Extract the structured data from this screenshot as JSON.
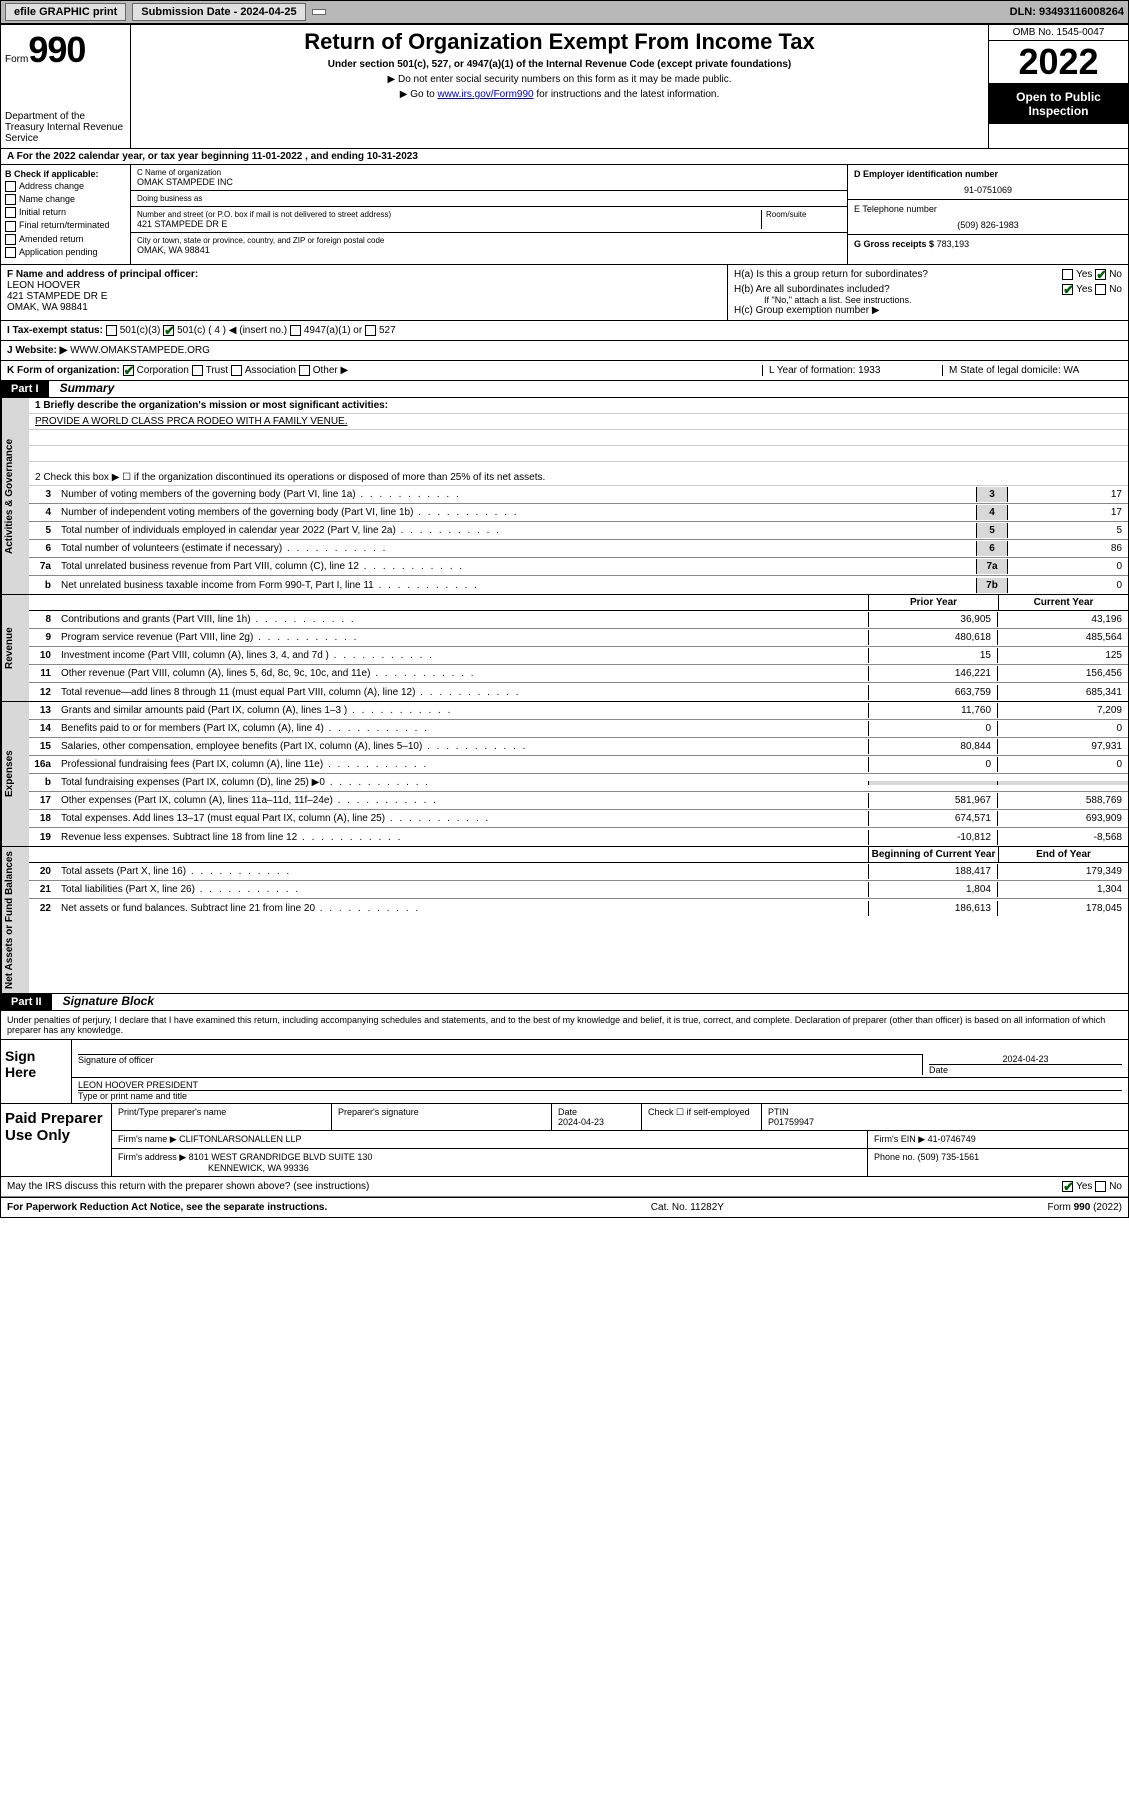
{
  "top": {
    "efile": "efile GRAPHIC print",
    "subdate_label": "Submission Date - 2024-04-25",
    "dln": "DLN: 93493116008264"
  },
  "header": {
    "form_label": "Form",
    "form_num": "990",
    "dept": "Department of the Treasury Internal Revenue Service",
    "title": "Return of Organization Exempt From Income Tax",
    "sub1": "Under section 501(c), 527, or 4947(a)(1) of the Internal Revenue Code (except private foundations)",
    "sub2": "▶ Do not enter social security numbers on this form as it may be made public.",
    "sub3_pre": "▶ Go to ",
    "sub3_link": "www.irs.gov/Form990",
    "sub3_post": " for instructions and the latest information.",
    "omb": "OMB No. 1545-0047",
    "year": "2022",
    "open": "Open to Public Inspection"
  },
  "rowA": "A  For the 2022 calendar year, or tax year beginning 11-01-2022   , and ending 10-31-2023",
  "colB": {
    "label": "B Check if applicable:",
    "items": [
      "Address change",
      "Name change",
      "Initial return",
      "Final return/terminated",
      "Amended return",
      "Application pending"
    ]
  },
  "colC": {
    "name_label": "C Name of organization",
    "name": "OMAK STAMPEDE INC",
    "dba_label": "Doing business as",
    "dba": "",
    "addr_label": "Number and street (or P.O. box if mail is not delivered to street address)",
    "room_label": "Room/suite",
    "addr": "421 STAMPEDE DR E",
    "city_label": "City or town, state or province, country, and ZIP or foreign postal code",
    "city": "OMAK, WA  98841"
  },
  "colD": {
    "ein_label": "D Employer identification number",
    "ein": "91-0751069",
    "phone_label": "E Telephone number",
    "phone": "(509) 826-1983",
    "gross_label": "G Gross receipts $",
    "gross": "783,193"
  },
  "rowF": {
    "label": "F Name and address of principal officer:",
    "name": "LEON HOOVER",
    "addr1": "421 STAMPEDE DR E",
    "addr2": "OMAK, WA  98841"
  },
  "rowH": {
    "ha": "H(a)  Is this a group return for subordinates?",
    "hb": "H(b)  Are all subordinates included?",
    "hb_note": "If \"No,\" attach a list. See instructions.",
    "hc": "H(c)  Group exemption number ▶"
  },
  "rowI": {
    "label": "I   Tax-exempt status:",
    "opts": [
      "501(c)(3)",
      "501(c) ( 4 ) ◀ (insert no.)",
      "4947(a)(1) or",
      "527"
    ]
  },
  "rowJ": {
    "label": "J   Website: ▶",
    "val": "WWW.OMAKSTAMPEDE.ORG"
  },
  "rowK": {
    "label": "K Form of organization:",
    "opts": [
      "Corporation",
      "Trust",
      "Association",
      "Other ▶"
    ],
    "L": "L Year of formation: 1933",
    "M": "M State of legal domicile: WA"
  },
  "part1": {
    "header": "Part I",
    "title": "Summary",
    "line1_label": "1  Briefly describe the organization's mission or most significant activities:",
    "line1_val": "PROVIDE A WORLD CLASS PRCA RODEO WITH A FAMILY VENUE.",
    "line2": "2   Check this box ▶ ☐  if the organization discontinued its operations or disposed of more than 25% of its net assets.",
    "governance": [
      {
        "n": "3",
        "d": "Number of voting members of the governing body (Part VI, line 1a)",
        "bn": "3",
        "v": "17"
      },
      {
        "n": "4",
        "d": "Number of independent voting members of the governing body (Part VI, line 1b)",
        "bn": "4",
        "v": "17"
      },
      {
        "n": "5",
        "d": "Total number of individuals employed in calendar year 2022 (Part V, line 2a)",
        "bn": "5",
        "v": "5"
      },
      {
        "n": "6",
        "d": "Total number of volunteers (estimate if necessary)",
        "bn": "6",
        "v": "86"
      },
      {
        "n": "7a",
        "d": "Total unrelated business revenue from Part VIII, column (C), line 12",
        "bn": "7a",
        "v": "0"
      },
      {
        "n": "b",
        "d": "Net unrelated business taxable income from Form 990-T, Part I, line 11",
        "bn": "7b",
        "v": "0"
      }
    ],
    "col_prior": "Prior Year",
    "col_curr": "Current Year",
    "revenue": [
      {
        "n": "8",
        "d": "Contributions and grants (Part VIII, line 1h)",
        "p": "36,905",
        "c": "43,196"
      },
      {
        "n": "9",
        "d": "Program service revenue (Part VIII, line 2g)",
        "p": "480,618",
        "c": "485,564"
      },
      {
        "n": "10",
        "d": "Investment income (Part VIII, column (A), lines 3, 4, and 7d )",
        "p": "15",
        "c": "125"
      },
      {
        "n": "11",
        "d": "Other revenue (Part VIII, column (A), lines 5, 6d, 8c, 9c, 10c, and 11e)",
        "p": "146,221",
        "c": "156,456"
      },
      {
        "n": "12",
        "d": "Total revenue—add lines 8 through 11 (must equal Part VIII, column (A), line 12)",
        "p": "663,759",
        "c": "685,341"
      }
    ],
    "expenses": [
      {
        "n": "13",
        "d": "Grants and similar amounts paid (Part IX, column (A), lines 1–3 )",
        "p": "11,760",
        "c": "7,209"
      },
      {
        "n": "14",
        "d": "Benefits paid to or for members (Part IX, column (A), line 4)",
        "p": "0",
        "c": "0"
      },
      {
        "n": "15",
        "d": "Salaries, other compensation, employee benefits (Part IX, column (A), lines 5–10)",
        "p": "80,844",
        "c": "97,931"
      },
      {
        "n": "16a",
        "d": "Professional fundraising fees (Part IX, column (A), line 11e)",
        "p": "0",
        "c": "0"
      },
      {
        "n": "b",
        "d": "Total fundraising expenses (Part IX, column (D), line 25) ▶0",
        "p": "",
        "c": "",
        "shaded": true
      },
      {
        "n": "17",
        "d": "Other expenses (Part IX, column (A), lines 11a–11d, 11f–24e)",
        "p": "581,967",
        "c": "588,769"
      },
      {
        "n": "18",
        "d": "Total expenses. Add lines 13–17 (must equal Part IX, column (A), line 25)",
        "p": "674,571",
        "c": "693,909"
      },
      {
        "n": "19",
        "d": "Revenue less expenses. Subtract line 18 from line 12",
        "p": "-10,812",
        "c": "-8,568"
      }
    ],
    "col_begin": "Beginning of Current Year",
    "col_end": "End of Year",
    "netassets": [
      {
        "n": "20",
        "d": "Total assets (Part X, line 16)",
        "p": "188,417",
        "c": "179,349"
      },
      {
        "n": "21",
        "d": "Total liabilities (Part X, line 26)",
        "p": "1,804",
        "c": "1,304"
      },
      {
        "n": "22",
        "d": "Net assets or fund balances. Subtract line 21 from line 20",
        "p": "186,613",
        "c": "178,045"
      }
    ],
    "side_gov": "Activities & Governance",
    "side_rev": "Revenue",
    "side_exp": "Expenses",
    "side_net": "Net Assets or Fund Balances"
  },
  "part2": {
    "header": "Part II",
    "title": "Signature Block",
    "declaration": "Under penalties of perjury, I declare that I have examined this return, including accompanying schedules and statements, and to the best of my knowledge and belief, it is true, correct, and complete. Declaration of preparer (other than officer) is based on all information of which preparer has any knowledge.",
    "sign_here": "Sign Here",
    "sig_officer": "Signature of officer",
    "sig_date": "2024-04-23",
    "date_label": "Date",
    "sig_name": "LEON HOOVER  PRESIDENT",
    "sig_name_label": "Type or print name and title",
    "paid": "Paid Preparer Use Only",
    "prep_name_label": "Print/Type preparer's name",
    "prep_sig_label": "Preparer's signature",
    "prep_date_label": "Date",
    "prep_date": "2024-04-23",
    "prep_check": "Check ☐ if self-employed",
    "ptin_label": "PTIN",
    "ptin": "P01759947",
    "firm_name_label": "Firm's name    ▶",
    "firm_name": "CLIFTONLARSONALLEN LLP",
    "firm_ein_label": "Firm's EIN ▶",
    "firm_ein": "41-0746749",
    "firm_addr_label": "Firm's address ▶",
    "firm_addr1": "8101 WEST GRANDRIDGE BLVD SUITE 130",
    "firm_addr2": "KENNEWICK, WA  99336",
    "firm_phone_label": "Phone no.",
    "firm_phone": "(509) 735-1561",
    "discuss": "May the IRS discuss this return with the preparer shown above? (see instructions)"
  },
  "footer": {
    "left": "For Paperwork Reduction Act Notice, see the separate instructions.",
    "mid": "Cat. No. 11282Y",
    "right": "Form 990 (2022)"
  }
}
